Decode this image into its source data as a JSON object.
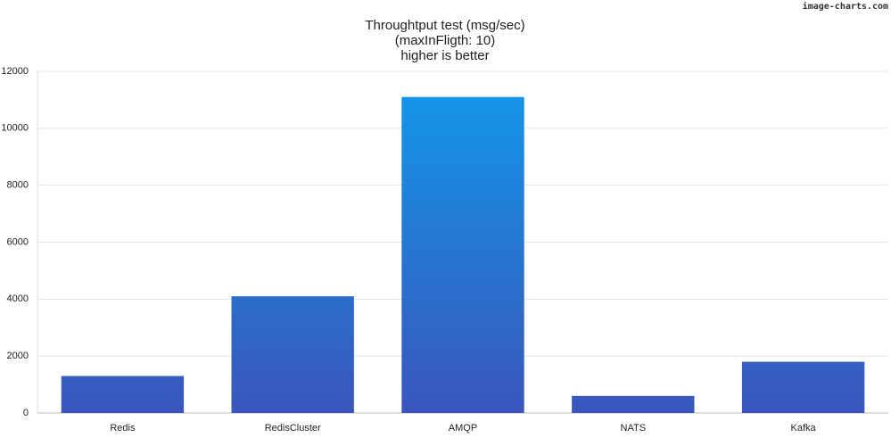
{
  "chart_data": {
    "type": "bar",
    "title": [
      "Throughtput test (msg/sec)",
      "(maxInFligth: 10)",
      "higher is better"
    ],
    "watermark": "image-charts.com",
    "categories": [
      "Redis",
      "RedisCluster",
      "AMQP",
      "NATS",
      "Kafka"
    ],
    "values": [
      1300,
      4100,
      11100,
      600,
      1800
    ],
    "gradient": [
      "#3a56bc",
      "#1199ea"
    ],
    "ylim": [
      0,
      12000
    ],
    "yticks": [
      0,
      2000,
      4000,
      6000,
      8000,
      10000,
      12000
    ],
    "grid": true
  }
}
